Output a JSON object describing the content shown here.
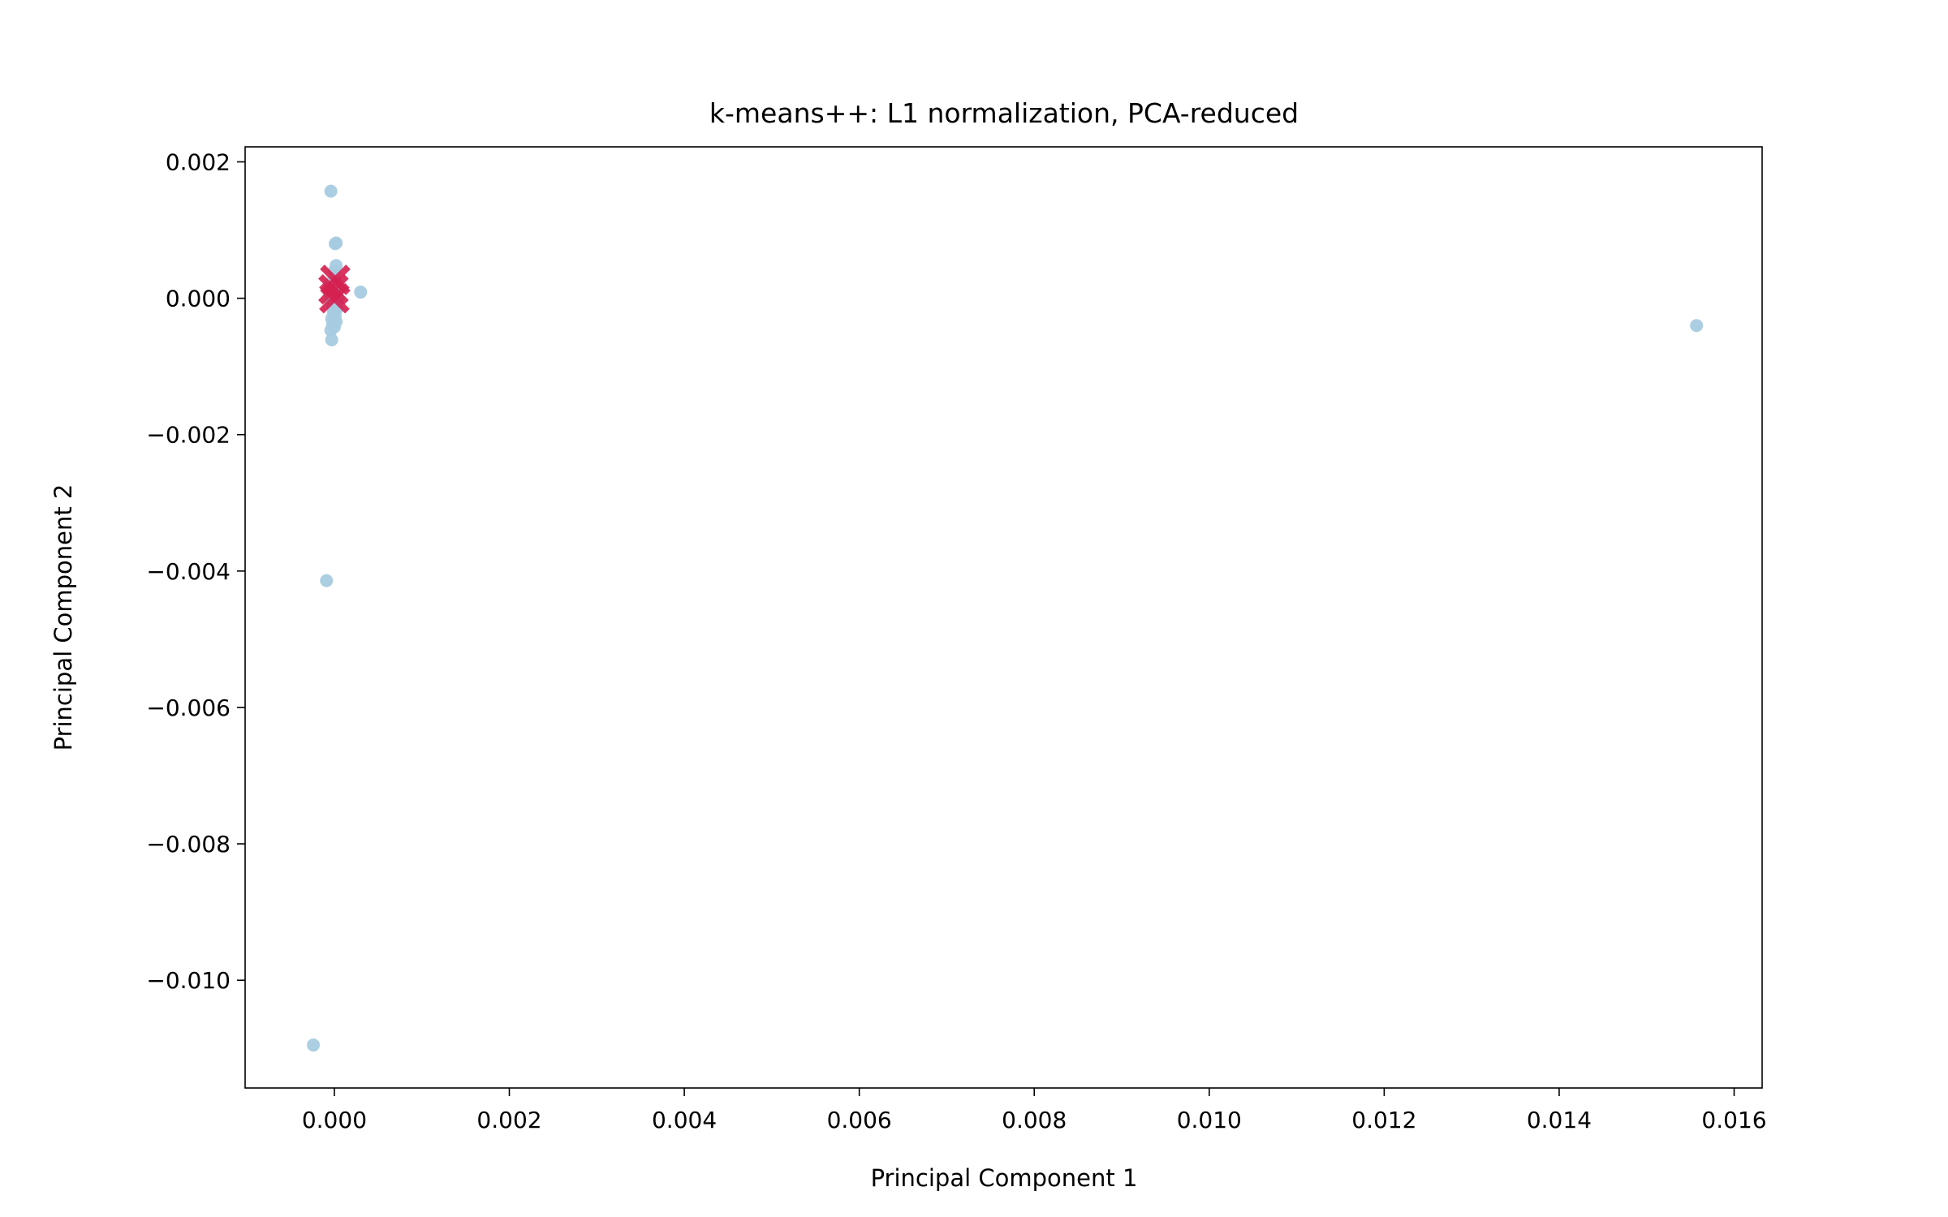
{
  "chart_data": {
    "type": "scatter",
    "title": "k-means++: L1 normalization, PCA-reduced",
    "xlabel": "Principal Component 1",
    "ylabel": "Principal Component 2",
    "xlim": [
      -0.00102,
      0.01632
    ],
    "ylim": [
      -0.01158,
      0.00222
    ],
    "xticks": [
      0.0,
      0.002,
      0.004,
      0.006,
      0.008,
      0.01,
      0.012,
      0.014,
      0.016
    ],
    "xtick_labels": [
      "0.000",
      "0.002",
      "0.004",
      "0.006",
      "0.008",
      "0.010",
      "0.012",
      "0.014",
      "0.016"
    ],
    "yticks": [
      0.002,
      0.0,
      -0.002,
      -0.004,
      -0.006,
      -0.008,
      -0.01
    ],
    "ytick_labels": [
      "0.002",
      "0.000",
      "−0.002",
      "−0.004",
      "−0.006",
      "−0.008",
      "−0.010"
    ],
    "grid": false,
    "point_color": "#a6cbe0",
    "centroid_color": "#d62050",
    "series": [
      {
        "marker": "point",
        "points": [
          [
            -4e-05,
            0.00157
          ],
          [
            2e-05,
            0.00081
          ],
          [
            1e-05,
            0.0008
          ],
          [
            2e-05,
            0.00048
          ],
          [
            0.0,
            0.0004
          ],
          [
            1e-05,
            0.0003
          ],
          [
            -5e-05,
            0.00022
          ],
          [
            4e-05,
            0.0002
          ],
          [
            -2e-05,
            0.00015
          ],
          [
            3e-05,
            0.0001
          ],
          [
            -6e-05,
            8e-05
          ],
          [
            0.0003,
            9e-05
          ],
          [
            0.0,
            5e-05
          ],
          [
            -3e-05,
            2e-05
          ],
          [
            4e-05,
            0.0
          ],
          [
            -4e-05,
            -5e-05
          ],
          [
            2e-05,
            -8e-05
          ],
          [
            -2e-05,
            -0.00012
          ],
          [
            3e-05,
            -0.00015
          ],
          [
            -1e-05,
            -0.0002
          ],
          [
            1e-05,
            -0.00025
          ],
          [
            -3e-05,
            -0.0003
          ],
          [
            2e-05,
            -0.00034
          ],
          [
            -2e-05,
            -0.00038
          ],
          [
            0.0,
            -0.00042
          ],
          [
            -4e-05,
            -0.00047
          ],
          [
            -3e-05,
            -0.00061
          ],
          [
            -9e-05,
            -0.00414
          ],
          [
            -0.00024,
            -0.01095
          ],
          [
            0.01557,
            -0.0004
          ]
        ]
      },
      {
        "marker": "x",
        "points": [
          [
            1e-05,
            0.00027
          ],
          [
            0.0,
            0.0
          ],
          [
            -1e-05,
            0.00013
          ]
        ]
      }
    ]
  }
}
